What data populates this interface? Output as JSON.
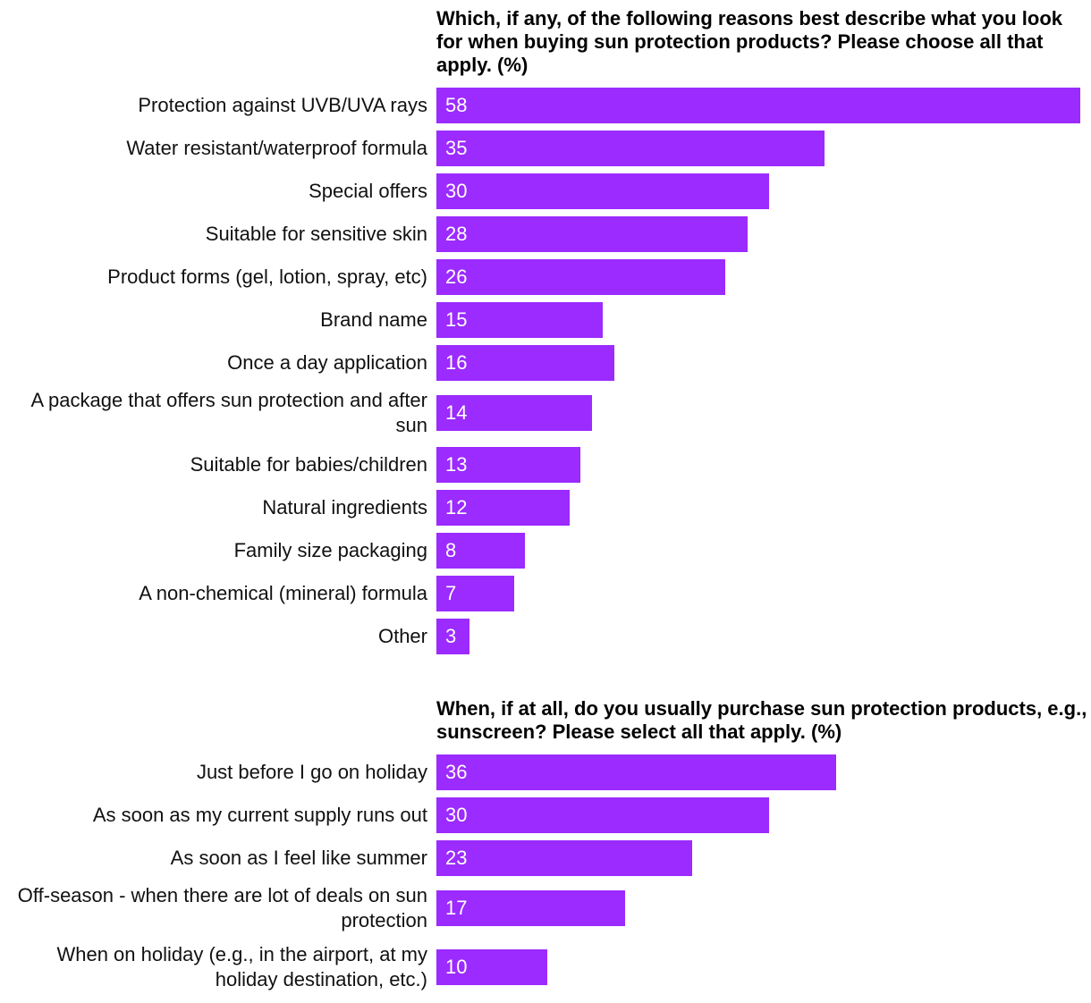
{
  "colors": {
    "bar": "#9b2bff",
    "value_text": "#ffffff",
    "label_text": "#111111"
  },
  "chart_data": [
    {
      "type": "bar",
      "orientation": "horizontal",
      "title": "Which, if any, of the following reasons best describe what you look for when buying sun protection products? Please choose all that apply. (%)",
      "categories": [
        "Protection against UVB/UVA rays",
        "Water resistant/waterproof formula",
        "Special offers",
        "Suitable for sensitive skin",
        "Product forms (gel, lotion, spray, etc)",
        "Brand name",
        "Once a day application",
        "A package that offers sun protection and after sun",
        "Suitable for babies/children",
        "Natural ingredients",
        "Family size packaging",
        "A non-chemical (mineral) formula",
        "Other"
      ],
      "values": [
        58,
        35,
        30,
        28,
        26,
        15,
        16,
        14,
        13,
        12,
        8,
        7,
        3
      ],
      "xlim": [
        0,
        58
      ],
      "grid": false,
      "data_labels": true
    },
    {
      "type": "bar",
      "orientation": "horizontal",
      "title": "When, if at all, do you usually purchase sun protection products, e.g., sunscreen? Please select all that apply. (%)",
      "categories": [
        "Just before I go on holiday",
        "As soon as my current supply runs out",
        "As soon as I feel like summer",
        "Off-season - when there are lot of deals on sun protection",
        "When on holiday (e.g., in the airport, at my holiday destination, etc.)"
      ],
      "values": [
        36,
        30,
        23,
        17,
        10
      ],
      "xlim": [
        0,
        58
      ],
      "grid": false,
      "data_labels": true
    }
  ]
}
